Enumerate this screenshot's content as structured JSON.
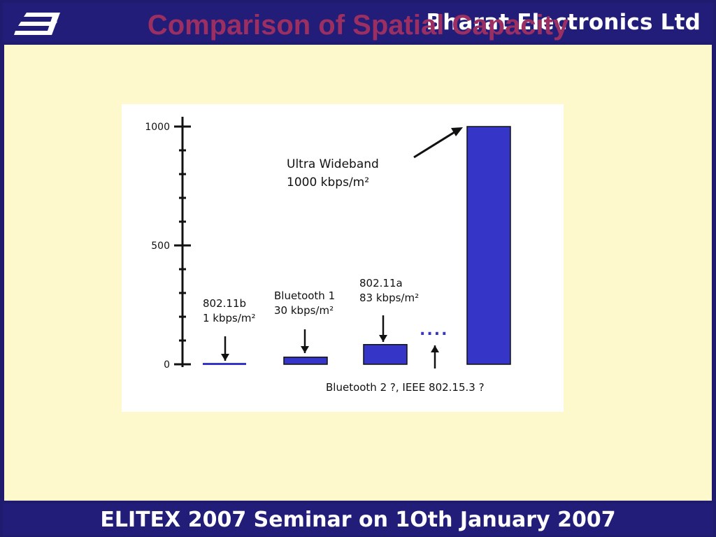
{
  "header": {
    "company": "Bharat Electronics Ltd",
    "logo_icon": "bel-logo-icon"
  },
  "slide": {
    "title": "Comparison of Spatial Capacity"
  },
  "footer": {
    "text": "ELITEX 2007 Seminar on 1Oth January 2007"
  },
  "chart_data": {
    "type": "bar",
    "title": "",
    "xlabel": "",
    "ylabel": "",
    "ylim": [
      0,
      1000
    ],
    "yticks": [
      "1000",
      "500",
      "0"
    ],
    "categories": [
      "802.11b",
      "Bluetooth 1",
      "802.11a",
      "Bluetooth 2 ?, IEEE 802.15.3 ?",
      "Ultra Wideband"
    ],
    "values": [
      1,
      30,
      83,
      null,
      1000
    ],
    "bar_color": "#3535c8",
    "annotations": [
      {
        "lines": [
          "802.11b",
          "1 kbps/m²"
        ]
      },
      {
        "lines": [
          "Bluetooth 1",
          "30 kbps/m²"
        ]
      },
      {
        "lines": [
          "802.11a",
          "83 kbps/m²"
        ]
      },
      {
        "lines": [
          "Bluetooth 2 ?, IEEE 802.15.3 ?"
        ]
      },
      {
        "lines": [
          "Ultra Wideband",
          "1000 kbps/m²"
        ]
      }
    ],
    "unknown_marker": "...."
  },
  "colors": {
    "frame": "#221d79",
    "background": "#fdf9cc",
    "title": "#9c2f62",
    "bar": "#3535c8"
  }
}
